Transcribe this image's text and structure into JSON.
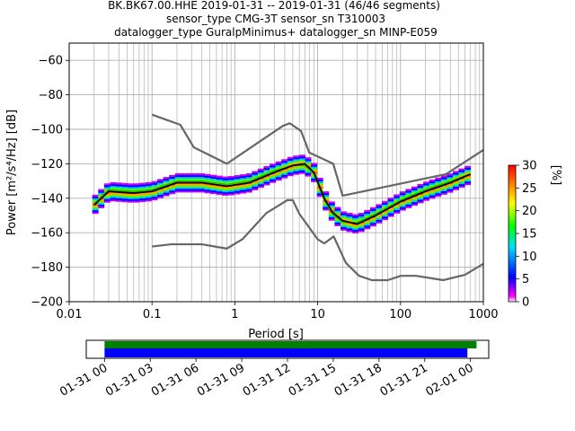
{
  "title_lines": [
    "BK.BK67.00.HHE   2019-01-31 -- 2019-01-31  (46/46 segments)",
    "sensor_type CMG-3T sensor_sn T310003",
    "datalogger_type GuralpMinimus+ datalogger_sn MINP-E059"
  ],
  "chart_data": [
    {
      "type": "heatmap",
      "title": "BK.BK67.00.HHE   2019-01-31 -- 2019-01-31  (46/46 segments)",
      "xlabel": "Period [s]",
      "ylabel": "Power [m²/s⁴/Hz] [dB]",
      "x_scale": "log",
      "xlim": [
        0.01,
        1000
      ],
      "ylim": [
        -200,
        -50
      ],
      "x_ticks": [
        "0.01",
        "0.1",
        "1",
        "10",
        "100",
        "1000"
      ],
      "y_ticks": [
        "−60",
        "−80",
        "−100",
        "−120",
        "−140",
        "−160",
        "−180",
        "−200"
      ],
      "grid": true,
      "colorbar": {
        "label": "[%]",
        "range": [
          0,
          30
        ],
        "ticks": [
          "0",
          "5",
          "10",
          "15",
          "20",
          "25",
          "30"
        ]
      },
      "noise_model_high": {
        "x": [
          0.1,
          0.22,
          0.32,
          0.8,
          3.8,
          4.6,
          6.3,
          7.9,
          15.4,
          20,
          354.8,
          1000
        ],
        "y": [
          -91.5,
          -97.4,
          -110.5,
          -120,
          -98,
          -96.5,
          -101,
          -113.5,
          -120,
          -138.5,
          -126,
          -112
        ]
      },
      "noise_model_low": {
        "x": [
          0.1,
          0.17,
          0.4,
          0.8,
          1.24,
          2.4,
          4.3,
          5,
          6,
          10,
          12,
          15.6,
          21.9,
          31.6,
          45,
          70,
          101,
          154,
          328,
          600,
          1000
        ],
        "y": [
          -168,
          -166.7,
          -166.7,
          -169.2,
          -163.7,
          -148.6,
          -141.1,
          -141.1,
          -149,
          -163.8,
          -166.2,
          -162.1,
          -177.5,
          -185,
          -187.5,
          -187.5,
          -185,
          -185,
          -187.5,
          -184.4,
          -178
        ]
      },
      "mode": {
        "x": [
          0.02,
          0.03,
          0.06,
          0.1,
          0.2,
          0.4,
          0.8,
          1.5,
          3,
          5,
          7,
          9,
          12,
          15,
          20,
          30,
          50,
          100,
          200,
          400,
          700
        ],
        "y": [
          -144,
          -136,
          -137,
          -136,
          -131,
          -131,
          -133,
          -131,
          -125,
          -121,
          -120,
          -125,
          -140,
          -148,
          -153,
          -155,
          -150,
          -142,
          -136,
          -131,
          -126
        ]
      },
      "mean": {
        "x": [
          0.02,
          0.03,
          0.06,
          0.1,
          0.2,
          0.4,
          0.8,
          1.5,
          3,
          5,
          7,
          9,
          12,
          15,
          20,
          30,
          50,
          100,
          200,
          400,
          700
        ],
        "y": [
          -143,
          -135,
          -136,
          -135,
          -130,
          -130,
          -132,
          -130,
          -124,
          -121,
          -121,
          -126,
          -141,
          -149,
          -154,
          -154,
          -149,
          -141,
          -135,
          -130,
          -126
        ]
      }
    },
    {
      "type": "bar",
      "title": "",
      "xlabel": "",
      "ylabel": "",
      "x_ticks": [
        "01-31 00",
        "01-31 03",
        "01-31 06",
        "01-31 09",
        "01-31 12",
        "01-31 15",
        "01-31 18",
        "01-31 21",
        "02-01 00"
      ],
      "xlim_hours": [
        -1.2,
        25.2
      ],
      "series": [
        {
          "name": "",
          "start_hour": 0,
          "end_hour": 24.4,
          "color": "#008000"
        },
        {
          "name": "",
          "start_hour": 0,
          "end_hour": 23.8,
          "color": "#0000ff"
        }
      ]
    }
  ]
}
